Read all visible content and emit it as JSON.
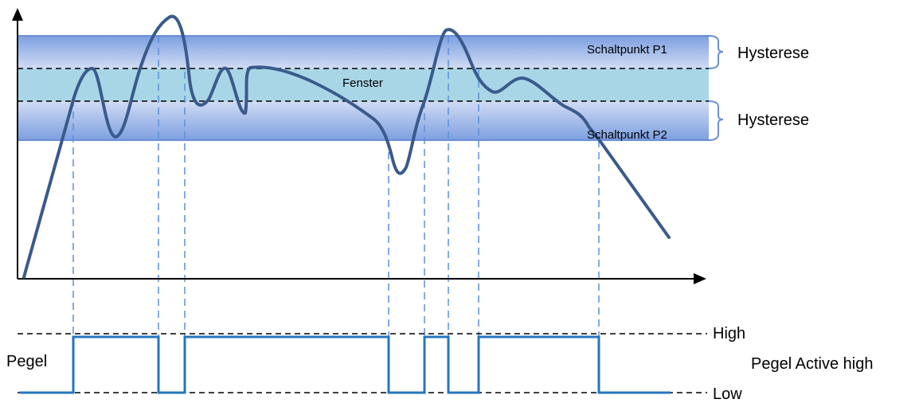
{
  "labels": {
    "switch_p1": "Schaltpunkt P1",
    "switch_p2": "Schaltpunkt P2",
    "window": "Fenster",
    "hysteresis_upper": "Hysterese",
    "hysteresis_lower": "Hysterese",
    "level": "Pegel",
    "high": "High",
    "low": "Low",
    "mode": "Pegel Active high"
  },
  "colors": {
    "band_dark": "#7d9fe0",
    "band_light": "#c4d2f0",
    "window_fill": "#a9d6e6",
    "curve": "#3a5a8c",
    "signal": "#2475c0",
    "guide": "#5b8fd8",
    "axis": "#000000"
  }
}
